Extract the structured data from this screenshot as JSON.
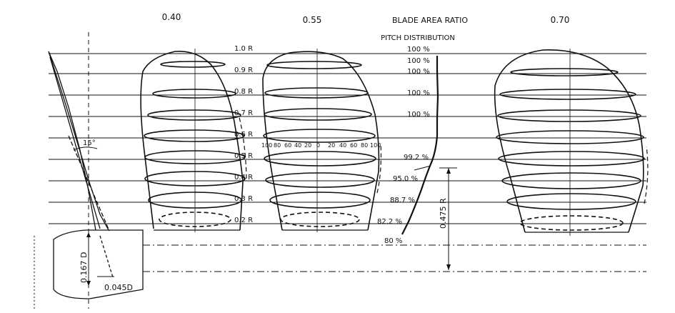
{
  "header": {
    "area_ratios": [
      "0.40",
      "0.55",
      "0.70"
    ],
    "title": "BLADE AREA RATIO",
    "pitch_title": "PITCH DISTRIBUTION"
  },
  "radii": [
    {
      "label": "1.0 R",
      "pitch": "100 %"
    },
    {
      "label": "0.9 R",
      "pitch": "100 %"
    },
    {
      "label": "0.8 R",
      "pitch": "100 %"
    },
    {
      "label": "0.7 R",
      "pitch": "100 %"
    },
    {
      "label": "0.6 R",
      "pitch": "100 %"
    },
    {
      "label": "0.5 R",
      "pitch": "99.2 %"
    },
    {
      "label": "0.4 R",
      "pitch": "95.0 %"
    },
    {
      "label": "0.3 R",
      "pitch": "88.7 %"
    },
    {
      "label": "0.2 R",
      "pitch": "82.2 %"
    }
  ],
  "pitch_hub": "80 %",
  "chord_scale": [
    "100",
    "80",
    "60",
    "40",
    "20",
    "0",
    "20",
    "40",
    "60",
    "80",
    "100"
  ],
  "dimensions": {
    "rake_angle": "15°",
    "hub_diameter": "0.167 D",
    "hub_offset": "0.045D",
    "hub_radius": "0.475 R"
  }
}
